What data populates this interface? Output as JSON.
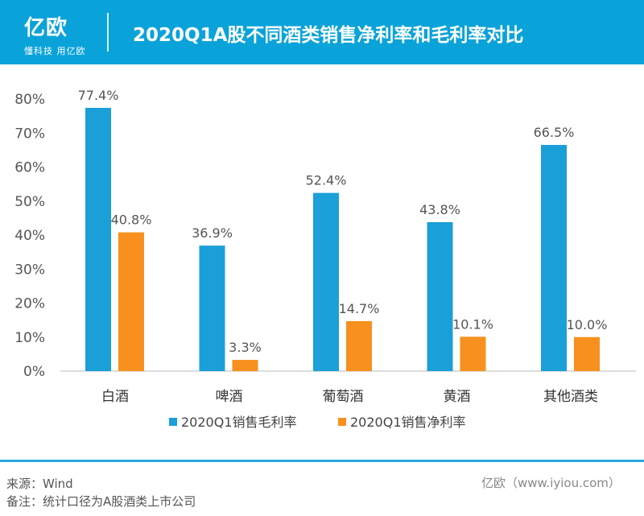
{
  "header": {
    "logo_text": "亿欧",
    "slogan": "懂科技 用亿欧",
    "title": "2020Q1A股不同酒类销售净利率和毛利率对比"
  },
  "colors": {
    "header": "#0aa3d9",
    "gross": "#1b9fd8",
    "net": "#f7901e"
  },
  "chart_data": {
    "type": "bar",
    "title": "2020Q1A股不同酒类销售净利率和毛利率对比",
    "categories": [
      "白酒",
      "啤酒",
      "葡萄酒",
      "黄酒",
      "其他酒类"
    ],
    "series": [
      {
        "name": "2020Q1销售毛利率",
        "values": [
          77.4,
          36.9,
          52.4,
          43.8,
          66.5
        ],
        "labels": [
          "77.4%",
          "36.9%",
          "52.4%",
          "43.8%",
          "66.5%"
        ]
      },
      {
        "name": "2020Q1销售净利率",
        "values": [
          40.8,
          3.3,
          14.7,
          10.1,
          10.0
        ],
        "labels": [
          "40.8%",
          "3.3%",
          "14.7%",
          "10.1%",
          "10.0%"
        ]
      }
    ],
    "yticks": [
      "0%",
      "10%",
      "20%",
      "30%",
      "40%",
      "50%",
      "60%",
      "70%",
      "80%"
    ],
    "ylim": [
      0,
      80
    ],
    "grid": false,
    "legend": "bottom"
  },
  "footer": {
    "source": "来源：Wind",
    "note": "备注：统计口径为A股酒类上市公司",
    "credit": "亿欧（www.iyiou.com）"
  }
}
